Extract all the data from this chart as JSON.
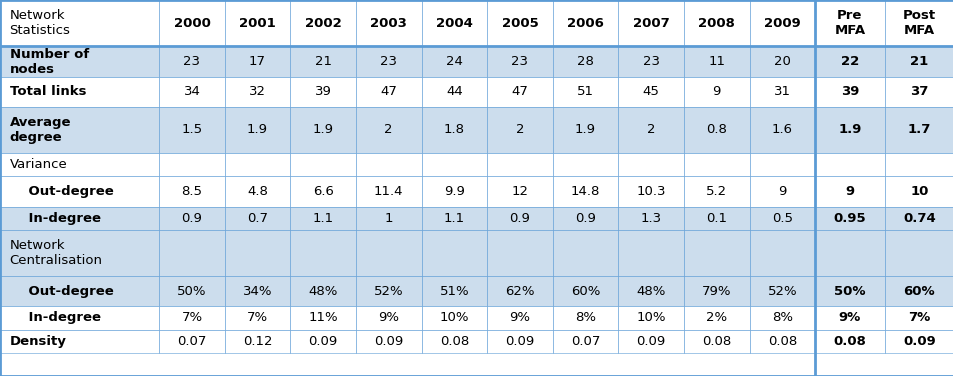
{
  "columns": [
    "Network\nStatistics",
    "2000",
    "2001",
    "2002",
    "2003",
    "2004",
    "2005",
    "2006",
    "2007",
    "2008",
    "2009",
    "Pre\nMFA",
    "Post\nMFA"
  ],
  "rows": [
    {
      "label": "Number of\nnodes",
      "values": [
        "23",
        "17",
        "21",
        "23",
        "24",
        "23",
        "28",
        "23",
        "11",
        "20",
        "22",
        "21"
      ],
      "bold_last": true,
      "bg": "light",
      "label_bold": true
    },
    {
      "label": "Total links",
      "values": [
        "34",
        "32",
        "39",
        "47",
        "44",
        "47",
        "51",
        "45",
        "9",
        "31",
        "39",
        "37"
      ],
      "bold_last": true,
      "bg": "white",
      "label_bold": true
    },
    {
      "label": "Average\ndegree",
      "values": [
        "1.5",
        "1.9",
        "1.9",
        "2",
        "1.8",
        "2",
        "1.9",
        "2",
        "0.8",
        "1.6",
        "1.9",
        "1.7"
      ],
      "bold_last": true,
      "bg": "light",
      "label_bold": true
    },
    {
      "label": "Variance",
      "values": [
        "",
        "",
        "",
        "",
        "",
        "",
        "",
        "",
        "",
        "",
        "",
        ""
      ],
      "bold_last": false,
      "bg": "white",
      "label_bold": false
    },
    {
      "label": "    Out-degree",
      "values": [
        "8.5",
        "4.8",
        "6.6",
        "11.4",
        "9.9",
        "12",
        "14.8",
        "10.3",
        "5.2",
        "9",
        "9",
        "10"
      ],
      "bold_last": true,
      "bg": "white",
      "label_bold": true
    },
    {
      "label": "    In-degree",
      "values": [
        "0.9",
        "0.7",
        "1.1",
        "1",
        "1.1",
        "0.9",
        "0.9",
        "1.3",
        "0.1",
        "0.5",
        "0.95",
        "0.74"
      ],
      "bold_last": true,
      "bg": "light",
      "label_bold": true
    },
    {
      "label": "Network\nCentralisation",
      "values": [
        "",
        "",
        "",
        "",
        "",
        "",
        "",
        "",
        "",
        "",
        "",
        ""
      ],
      "bold_last": false,
      "bg": "light",
      "label_bold": false
    },
    {
      "label": "    Out-degree",
      "values": [
        "50%",
        "34%",
        "48%",
        "52%",
        "51%",
        "62%",
        "60%",
        "48%",
        "79%",
        "52%",
        "50%",
        "60%"
      ],
      "bold_last": true,
      "bg": "light",
      "label_bold": true
    },
    {
      "label": "    In-degree",
      "values": [
        "7%",
        "7%",
        "11%",
        "9%",
        "10%",
        "9%",
        "8%",
        "10%",
        "2%",
        "8%",
        "9%",
        "7%"
      ],
      "bold_last": true,
      "bg": "white",
      "label_bold": true
    },
    {
      "label": "Density",
      "values": [
        "0.07",
        "0.12",
        "0.09",
        "0.09",
        "0.08",
        "0.09",
        "0.07",
        "0.09",
        "0.08",
        "0.08",
        "0.08",
        "0.09"
      ],
      "bold_last": true,
      "bg": "white",
      "label_bold": true
    }
  ],
  "col_widths_rel": [
    1.65,
    0.68,
    0.68,
    0.68,
    0.68,
    0.68,
    0.68,
    0.68,
    0.68,
    0.68,
    0.68,
    0.72,
    0.72
  ],
  "row_heights_rel": [
    2.0,
    1.3,
    1.3,
    2.0,
    1.0,
    1.3,
    1.0,
    2.0,
    1.3,
    1.0,
    1.0,
    1.0
  ],
  "light_bg": "#CCDDED",
  "white_bg": "#FFFFFF",
  "border_color": "#5B9BD5",
  "text_color": "#000000",
  "header_fontsize": 9.5,
  "cell_fontsize": 9.5,
  "fig_width": 9.54,
  "fig_height": 3.76
}
